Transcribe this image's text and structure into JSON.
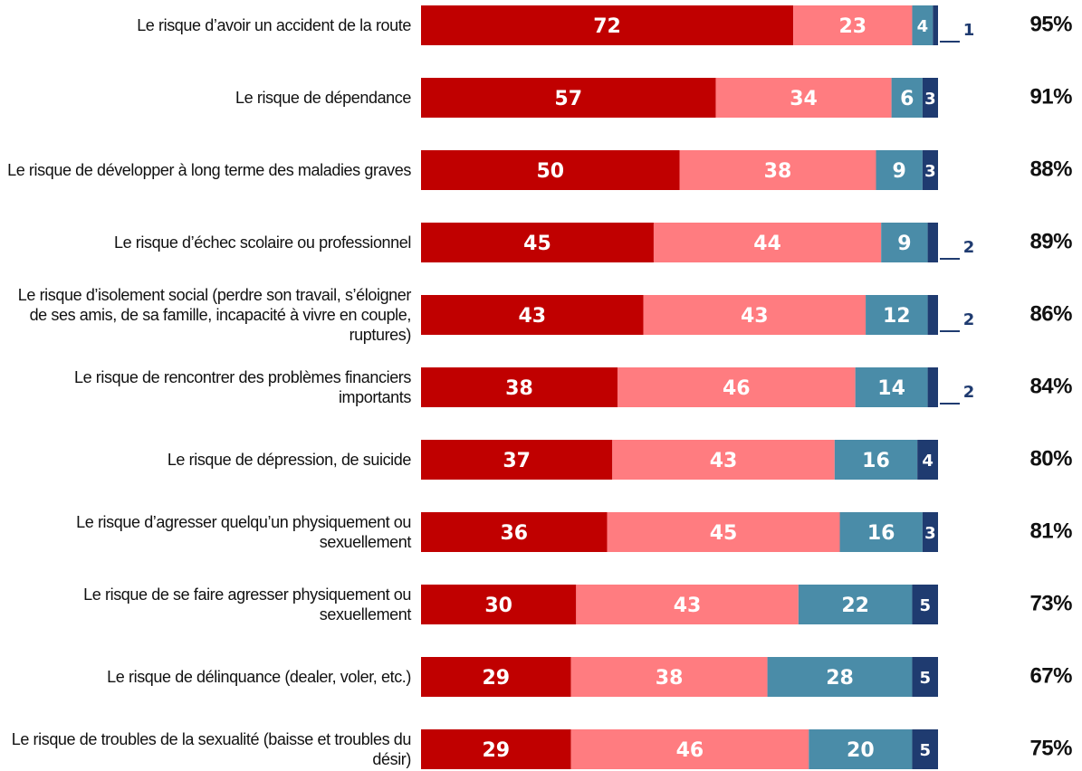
{
  "chart_data": {
    "type": "stacked_bar_horizontal",
    "categories": [
      "Le risque d’avoir un accident de la route",
      "Le risque de dépendance",
      "Le risque de développer à long terme des maladies graves",
      "Le risque d’échec scolaire ou professionnel",
      "Le risque d’isolement social (perdre son travail, s’éloigner de ses amis, de sa famille, incapacité à vivre en couple, ruptures)",
      "Le risque de rencontrer des problèmes financiers importants",
      "Le risque de dépression, de suicide",
      "Le risque d’agresser quelqu’un physiquement ou sexuellement",
      "Le risque de se faire agresser physiquement ou sexuellement",
      "Le risque de délinquance (dealer, voler, etc.)",
      "Le risque de troubles de la sexualité (baisse et troubles du désir)"
    ],
    "series": [
      {
        "color": "#c00000",
        "values": [
          72,
          57,
          50,
          45,
          43,
          38,
          37,
          36,
          30,
          29,
          29
        ]
      },
      {
        "color": "#ff7c80",
        "values": [
          23,
          34,
          38,
          44,
          43,
          46,
          43,
          45,
          43,
          38,
          46
        ]
      },
      {
        "color": "#4a8ca8",
        "values": [
          4,
          6,
          9,
          9,
          12,
          14,
          16,
          16,
          22,
          28,
          20
        ]
      },
      {
        "color": "#1f3b70",
        "values": [
          1,
          3,
          3,
          2,
          2,
          2,
          4,
          3,
          5,
          5,
          5
        ]
      }
    ],
    "totals": {
      "values": [
        95,
        91,
        88,
        89,
        86,
        84,
        80,
        81,
        73,
        67,
        75
      ],
      "value_labels": [
        "95%",
        "91%",
        "88%",
        "89%",
        "86%",
        "84%",
        "80%",
        "81%",
        "73%",
        "67%",
        "75%"
      ]
    },
    "xlim": [
      0,
      100
    ]
  }
}
